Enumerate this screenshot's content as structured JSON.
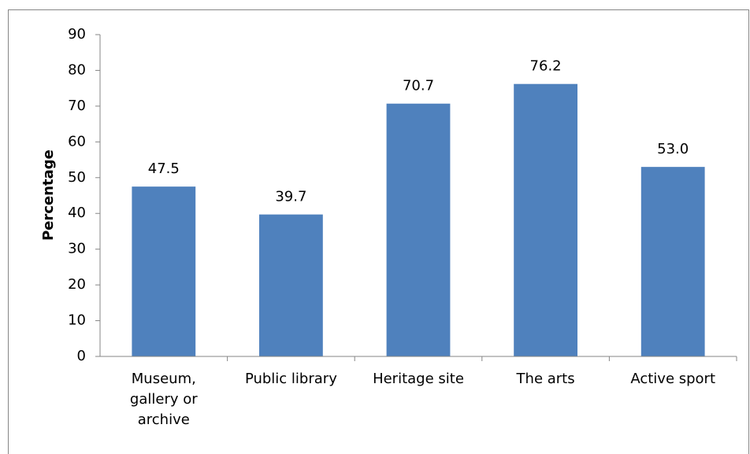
{
  "chart_data": {
    "type": "bar",
    "ylabel": "Percentage",
    "categories": [
      "Museum,\ngallery or\narchive",
      "Public library",
      "Heritage site",
      "The arts",
      "Active sport"
    ],
    "values": [
      47.5,
      39.7,
      70.7,
      76.2,
      53.0
    ],
    "value_labels": [
      "47.5",
      "39.7",
      "70.7",
      "76.2",
      "53.0"
    ],
    "color": "#4f81bd",
    "ylim": [
      0,
      90
    ],
    "yticks": [
      0,
      10,
      20,
      30,
      40,
      50,
      60,
      70,
      80,
      90
    ],
    "grid": false
  }
}
